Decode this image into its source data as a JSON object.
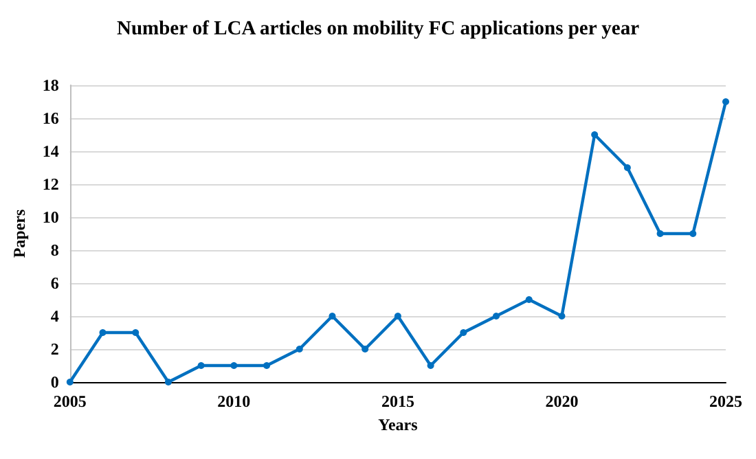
{
  "chart_data": {
    "type": "line",
    "title": "Number of LCA articles on mobility FC applications per year",
    "xlabel": "Years",
    "ylabel": "Papers",
    "x": [
      2005,
      2006,
      2007,
      2008,
      2009,
      2010,
      2011,
      2012,
      2013,
      2014,
      2015,
      2016,
      2017,
      2018,
      2019,
      2020,
      2021,
      2022,
      2023,
      2024,
      2025
    ],
    "series": [
      {
        "color": "#0070c0",
        "values": [
          0,
          3,
          3,
          0,
          1,
          1,
          1,
          2,
          4,
          2,
          4,
          1,
          3,
          4,
          5,
          4,
          15,
          13,
          9,
          9,
          17
        ]
      }
    ],
    "xlim": [
      2005,
      2025
    ],
    "xticks": [
      2005,
      2010,
      2015,
      2020,
      2025
    ],
    "ylim": [
      0,
      18
    ],
    "yticks": [
      0,
      2,
      4,
      6,
      8,
      10,
      12,
      14,
      16,
      18
    ],
    "grid": "y",
    "marker": "circle",
    "line_style": "solid"
  }
}
